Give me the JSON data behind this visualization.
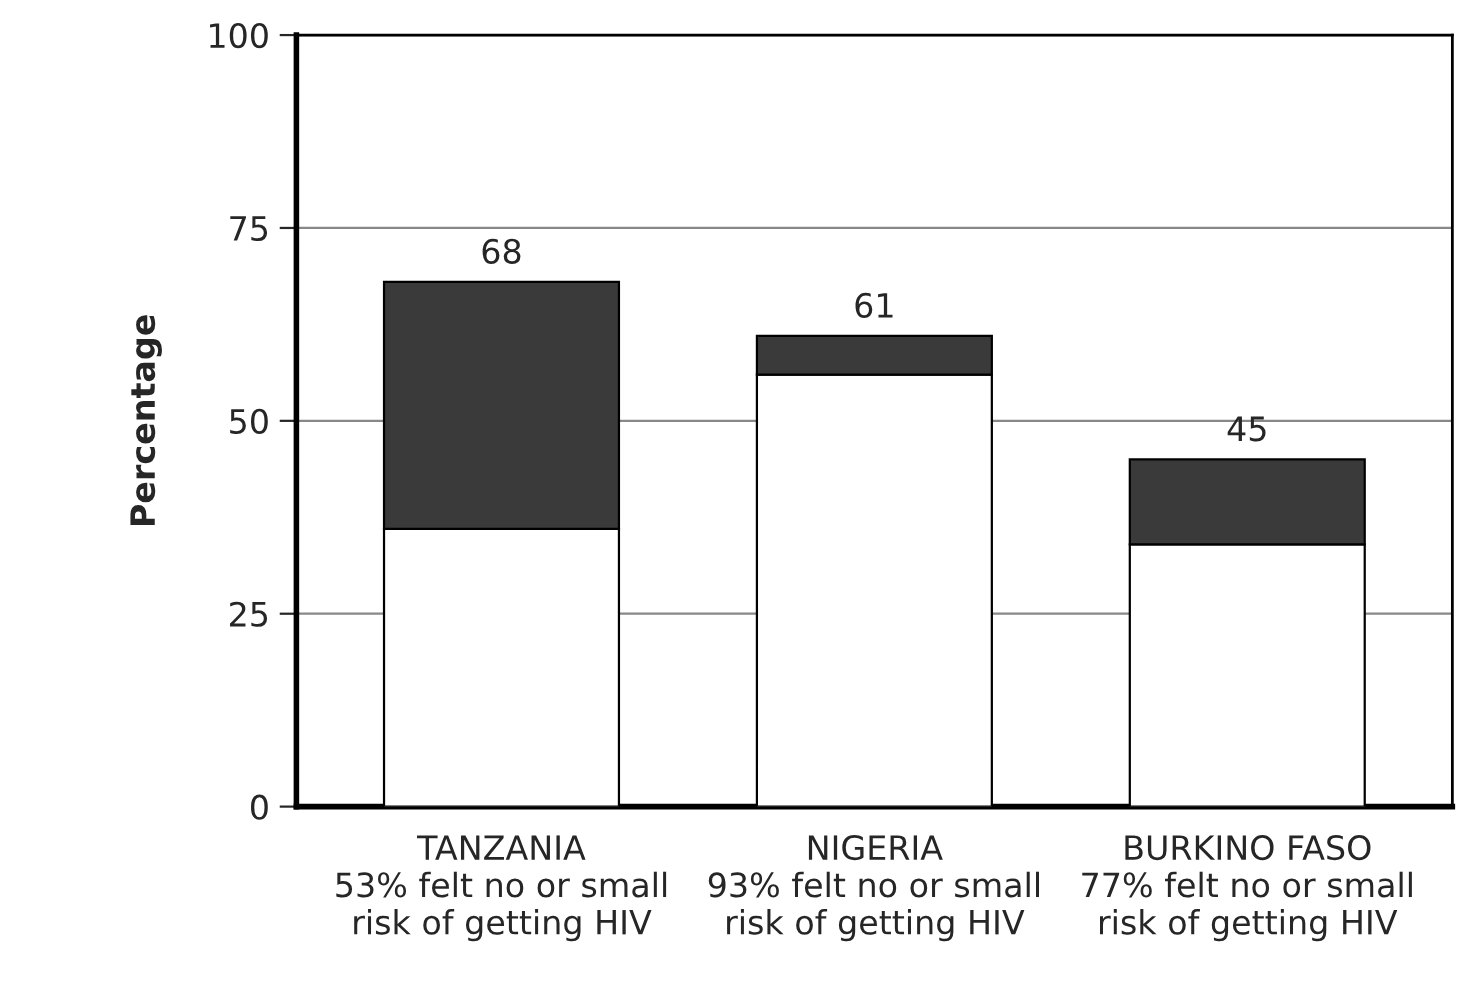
{
  "chart_data": {
    "type": "bar",
    "ylabel": "Percentage",
    "categories": [
      "TANZANIA\n53% felt no or small\nrisk of getting HIV",
      "NIGERIA\n93% felt no or small\nrisk of getting HIV",
      "BURKINO FASO\n77% felt no or small\nrisk of getting HIV"
    ],
    "stacked": true,
    "series": [
      {
        "color": "#ffffff",
        "values": [
          36,
          56,
          34
        ]
      },
      {
        "color": "#3a3a3a",
        "values": [
          32,
          5,
          11
        ]
      }
    ],
    "totals": [
      "68",
      "61",
      "45"
    ],
    "ylim": [
      0,
      100
    ],
    "yticks": [
      0,
      25,
      50,
      75,
      100
    ],
    "grid": "y"
  }
}
